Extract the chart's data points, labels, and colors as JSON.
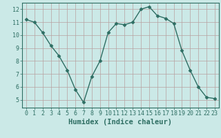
{
  "x": [
    0,
    1,
    2,
    3,
    4,
    5,
    6,
    7,
    8,
    9,
    10,
    11,
    12,
    13,
    14,
    15,
    16,
    17,
    18,
    19,
    20,
    21,
    22,
    23
  ],
  "y": [
    11.2,
    11.0,
    10.2,
    9.2,
    8.4,
    7.3,
    5.8,
    4.8,
    6.8,
    8.0,
    10.2,
    10.9,
    10.8,
    11.0,
    12.0,
    12.2,
    11.5,
    11.3,
    10.9,
    8.8,
    7.3,
    6.0,
    5.2,
    5.1
  ],
  "line_color": "#2E6E63",
  "marker": "D",
  "marker_size": 2.5,
  "bg_color": "#CBE9E7",
  "grid_color": "#B8A0A0",
  "xlabel": "Humidex (Indice chaleur)",
  "xlabel_fontsize": 7.5,
  "tick_fontsize": 6,
  "xlim": [
    -0.5,
    23.5
  ],
  "ylim": [
    4.4,
    12.5
  ],
  "yticks": [
    5,
    6,
    7,
    8,
    9,
    10,
    11,
    12
  ],
  "xticks": [
    0,
    1,
    2,
    3,
    4,
    5,
    6,
    7,
    8,
    9,
    10,
    11,
    12,
    13,
    14,
    15,
    16,
    17,
    18,
    19,
    20,
    21,
    22,
    23
  ],
  "spine_color": "#2E6E63",
  "line_width": 1.0
}
